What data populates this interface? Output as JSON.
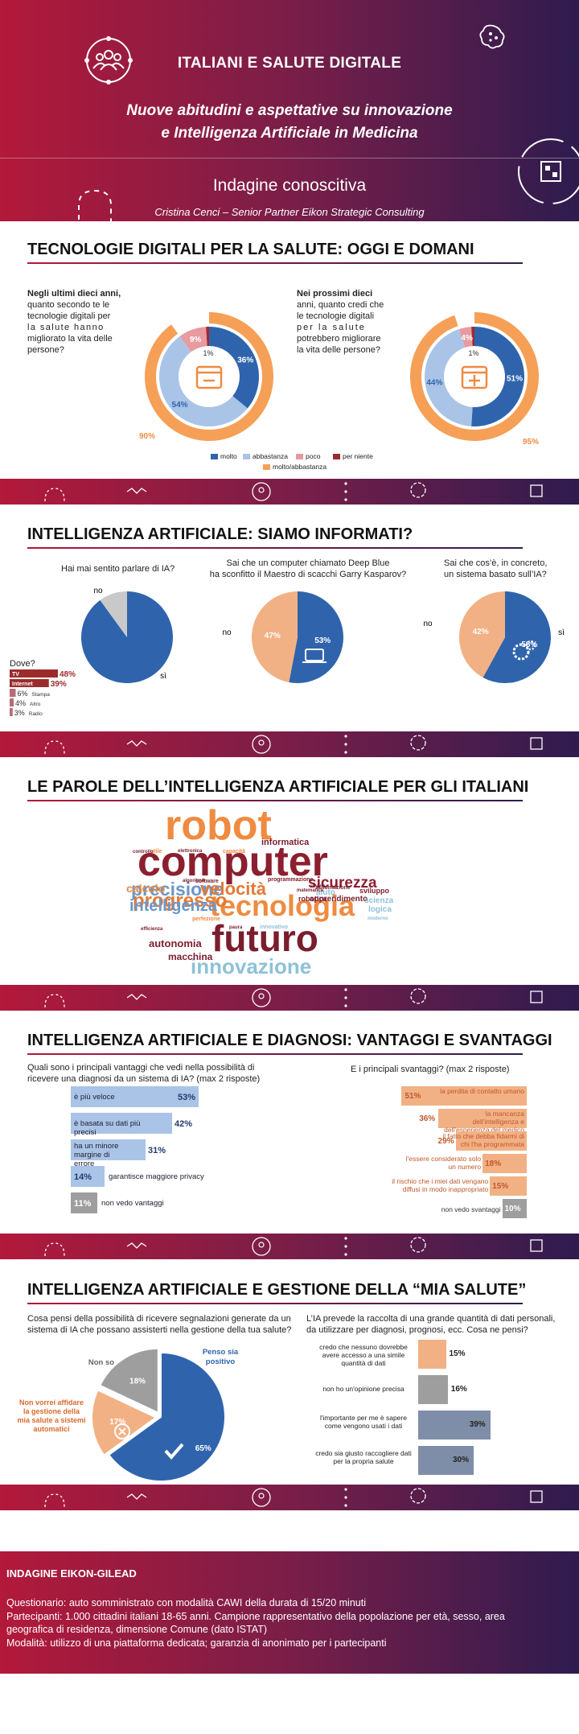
{
  "hero": {
    "title": "ITALIANI E SALUTE DIGITALE",
    "subtitle_line1": "Nuove abitudini e aspettative su innovazione",
    "subtitle_line2": "e Intelligenza Artificiale in Medicina",
    "kicker": "Indagine conoscitiva",
    "author": "Cristina Cenci – Senior Partner Eikon Strategic Consulting"
  },
  "icons": [
    "people-circle-icon",
    "virus-icon",
    "qr-scan-icon",
    "zigzag-icon",
    "shield-icon",
    "lightbulb-icon",
    "dots-icon",
    "planet-icon"
  ],
  "colors": {
    "molto": "#2f64ad",
    "abbastanza": "#a9c4e6",
    "poco": "#e79a9f",
    "per_niente": "#9c2c2c",
    "molto_abbastanza": "#f5a056",
    "peach": "#f2b184",
    "orange": "#ef8b40",
    "grey": "#9e9e9e",
    "slate": "#7f8ea8"
  },
  "s1": {
    "title": "TECNOLOGIE DIGITALI PER LA SALUTE: OGGI E DOMANI",
    "q1_line1": "Negli ultimi dieci anni,",
    "q1_line2": "quanto secondo te le",
    "q1_line3": "tecnologie digitali per",
    "q1_line4": "la salute hanno",
    "q1_line5": "migliorato la vita delle",
    "q1_line6": "persone?",
    "q2_line1": "Nei prossimi dieci",
    "q2_line2": "anni, quanto credi che",
    "q2_line3": "le tecnologie digitali",
    "q2_line4": "per la salute",
    "q2_line5": "potrebbero migliorare",
    "q2_line6": "la vita delle persone?",
    "legend": [
      "molto",
      "abbastanza",
      "poco",
      "per niente",
      "molto/abbastanza"
    ]
  },
  "s2": {
    "title": "INTELLIGENZA ARTIFICIALE: SIAMO INFORMATI?",
    "q1": "Hai mai sentito parlare di IA?",
    "q2_line1": "Sai che un computer chiamato Deep Blue",
    "q2_line2": "ha sconfitto il Maestro di scacchi Garry Kasparov?",
    "q3_line1": "Sai che cos’è, in concreto,",
    "q3_line2": "un sistema basato sull’IA?",
    "si": "sì",
    "no": "no",
    "dove": "Dove?"
  },
  "s3": {
    "title": "LE PAROLE DELL’INTELLIGENZA ARTIFICIALE PER GLI ITALIANI",
    "words": [
      {
        "w": "robot",
        "c": "#ef8b40"
      },
      {
        "w": "computer",
        "c": "#8c1f2f"
      },
      {
        "w": "futuro",
        "c": "#7a1e2e"
      },
      {
        "w": "tecnologia",
        "c": "#ef8b40"
      },
      {
        "w": "innovazione",
        "c": "#8fc1d8"
      },
      {
        "w": "progresso",
        "c": "#e27a36"
      },
      {
        "w": "precisione",
        "c": "#6b97c9"
      },
      {
        "w": "intelligenza",
        "c": "#6b97c9"
      },
      {
        "w": "velocità",
        "c": "#e27a36"
      },
      {
        "w": "sicurezza",
        "c": "#8c1f2f"
      },
      {
        "w": "informatica",
        "c": "#7a1e2e"
      },
      {
        "w": "calcolo",
        "c": "#ef8b40"
      },
      {
        "w": "autonomia",
        "c": "#7a1e2e"
      },
      {
        "w": "macchina",
        "c": "#7a1e2e"
      },
      {
        "w": "apprendimento",
        "c": "#7a1e2e"
      },
      {
        "w": "sviluppo",
        "c": "#7a1e2e"
      },
      {
        "w": "scienza",
        "c": "#8fc1d8"
      },
      {
        "w": "logica",
        "c": "#8fc1d8"
      },
      {
        "w": "aiuto",
        "c": "#8fc1d8"
      },
      {
        "w": "software",
        "c": "#7a1e2e"
      },
      {
        "w": "elettronica",
        "c": "#7a1e2e"
      },
      {
        "w": "capacità",
        "c": "#ef8b40"
      },
      {
        "w": "utile",
        "c": "#ef8b40"
      },
      {
        "w": "controllo",
        "c": "#7a1e2e"
      },
      {
        "w": "algoritmo",
        "c": "#7a1e2e"
      },
      {
        "w": "efficienza",
        "c": "#7a1e2e"
      },
      {
        "w": "automazione",
        "c": "#7a1e2e"
      },
      {
        "w": "perfezione",
        "c": "#ef8b40"
      },
      {
        "w": "programmazione",
        "c": "#7a1e2e"
      },
      {
        "w": "innovativo",
        "c": "#8fc1d8"
      },
      {
        "w": "matematica",
        "c": "#7a1e2e"
      },
      {
        "w": "umano",
        "c": "#7a1e2e"
      },
      {
        "w": "robotica",
        "c": "#7a1e2e"
      },
      {
        "w": "moderno",
        "c": "#8fc1d8"
      },
      {
        "w": "paura",
        "c": "#7a1e2e"
      }
    ]
  },
  "s4": {
    "title": "INTELLIGENZA ARTIFICIALE E DIAGNOSI: VANTAGGI E SVANTAGGI",
    "q_left_line1": "Quali sono i principali vantaggi che vedi nella possibilità di",
    "q_left_line2": "ricevere una diagnosi da un sistema di IA? (max 2 risposte)",
    "q_right": "E i principali svantaggi? (max 2 risposte)",
    "adv_labels": [
      "è più veloce",
      "è basata su dati più precisi",
      "ha un minore margine di errore",
      "garantisce maggiore privacy",
      "non vedo vantaggi"
    ],
    "dis_labels": [
      "la perdita di contatto umano",
      "la mancanza dell'intelligenza e dell'esperienza del medico",
      "il fatto che debba fidarmi di chi l'ha programmata",
      "l'essere considerato solo un numero",
      "il rischio che i miei dati vengano diffusi in modo inappropriato",
      "non vedo svantaggi"
    ]
  },
  "s5": {
    "title": "INTELLIGENZA ARTIFICIALE E GESTIONE DELLA “MIA SALUTE”",
    "q_left_line1": "Cosa pensi della possibilità di ricevere segnalazioni generate da un",
    "q_left_line2": "sistema di IA che possano assisterti nella gestione della tua salute?",
    "q_right_line1": "L’IA prevede la raccolta di una grande quantità di dati personali,",
    "q_right_line2": "da utilizzare per diagnosi, prognosi, ecc. Cosa ne pensi?",
    "pie_labels": {
      "pos1": "Penso sia",
      "pos2": "positivo",
      "nonso": "Non so",
      "neg1": "Non vorrei affidare",
      "neg2": "la gestione della",
      "neg3": "mia salute a sistemi",
      "neg4": "automatici"
    },
    "bar_labels": [
      "credo che nessuno dovrebbe avere accesso a una simile quantità di dati",
      "non ho un'opinione precisa",
      "l'importante per me è sapere come vengono usati i dati",
      "credo sia giusto raccogliere dati per la propria salute"
    ]
  },
  "footer": {
    "title": "INDAGINE EIKON-GILEAD",
    "line1": "Questionario: auto somministrato con modalità CAWI della durata di 15/20 minuti",
    "line2": "Partecipanti: 1.000 cittadini italiani 18-65 anni. Campione rappresentativo della popolazione per età, sesso, area",
    "line3": "geografica di residenza, dimensione Comune (dato ISTAT)",
    "line4": "Modalità: utilizzo di una piattaforma dedicata; garanzia di anonimato per i partecipanti"
  },
  "chart_data": [
    {
      "type": "pie",
      "name": "Negli ultimi dieci anni",
      "inner": {
        "categories": [
          "molto",
          "abbastanza",
          "poco",
          "per niente"
        ],
        "values": [
          36,
          54,
          9,
          1
        ]
      },
      "outer": {
        "categories": [
          "molto/abbastanza"
        ],
        "values": [
          90
        ]
      }
    },
    {
      "type": "pie",
      "name": "Nei prossimi dieci anni",
      "inner": {
        "categories": [
          "molto",
          "abbastanza",
          "poco",
          "per niente"
        ],
        "values": [
          51,
          44,
          4,
          1
        ]
      },
      "outer": {
        "categories": [
          "molto/abbastanza"
        ],
        "values": [
          95
        ]
      }
    },
    {
      "type": "pie",
      "title": "Hai mai sentito parlare di IA?",
      "categories": [
        "sì",
        "no"
      ],
      "values": [
        90,
        10
      ]
    },
    {
      "type": "pie",
      "title": "Deep Blue",
      "categories": [
        "sì",
        "no"
      ],
      "values": [
        53,
        47
      ]
    },
    {
      "type": "pie",
      "title": "Sistema basato sull'IA",
      "categories": [
        "sì",
        "no"
      ],
      "values": [
        58,
        42
      ]
    },
    {
      "type": "bar",
      "title": "Dove?",
      "categories": [
        "TV",
        "Internet",
        "Stampa",
        "Altro",
        "Radio"
      ],
      "values": [
        48,
        39,
        6,
        4,
        3
      ]
    },
    {
      "type": "bar",
      "title": "Vantaggi",
      "categories": [
        "è più veloce",
        "è basata su dati più precisi",
        "ha un minore margine di errore",
        "garantisce maggiore privacy",
        "non vedo vantaggi"
      ],
      "values": [
        53,
        42,
        31,
        14,
        11
      ]
    },
    {
      "type": "bar",
      "title": "Svantaggi",
      "categories": [
        "la perdita di contatto umano",
        "la mancanza dell'intelligenza e dell'esperienza del medico",
        "il fatto che debba fidarmi di chi l'ha programmata",
        "l'essere considerato solo un numero",
        "il rischio che i miei dati vengano diffusi in modo inappropriato",
        "non vedo svantaggi"
      ],
      "values": [
        51,
        36,
        29,
        18,
        15,
        10
      ]
    },
    {
      "type": "pie",
      "title": "Gestione della mia salute",
      "categories": [
        "Penso sia positivo",
        "Non vorrei affidare la gestione della mia salute a sistemi automatici",
        "Non so"
      ],
      "values": [
        65,
        17,
        18
      ]
    },
    {
      "type": "bar",
      "title": "Dati personali",
      "categories": [
        "credo che nessuno dovrebbe avere accesso a una simile quantità di dati",
        "non ho un'opinione precisa",
        "l'importante per me è sapere come vengono usati i dati",
        "credo sia giusto raccogliere dati per la propria salute"
      ],
      "values": [
        15,
        16,
        39,
        30
      ]
    }
  ]
}
